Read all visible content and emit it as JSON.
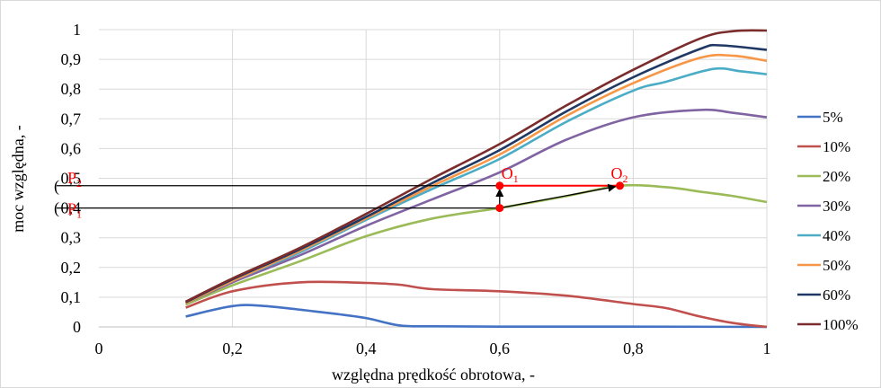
{
  "chart_data": {
    "type": "line",
    "title": "",
    "xlabel": "względna prędkość obrotowa, -",
    "ylabel": "moc względna, -",
    "xlim": [
      0,
      1
    ],
    "ylim": [
      0,
      1
    ],
    "x_ticks": [
      "0",
      "0,2",
      "0,4",
      "0,6",
      "0,8",
      "1"
    ],
    "y_ticks": [
      "0",
      "0,1",
      "0,2",
      "0,3",
      "0,4",
      "0,5",
      "0,6",
      "0,7",
      "0,8",
      "0,9",
      "1"
    ],
    "grid": true,
    "legend_position": "right",
    "series": [
      {
        "name": "5%",
        "color": "#4472c4",
        "points": [
          [
            0.13,
            0.035
          ],
          [
            0.2,
            0.07
          ],
          [
            0.25,
            0.07
          ],
          [
            0.35,
            0.045
          ],
          [
            0.4,
            0.03
          ],
          [
            0.45,
            0.005
          ],
          [
            0.5,
            0.002
          ],
          [
            0.6,
            0.001
          ],
          [
            0.8,
            0.001
          ],
          [
            1.0,
            0.0
          ]
        ]
      },
      {
        "name": "10%",
        "color": "#c0504d",
        "points": [
          [
            0.13,
            0.065
          ],
          [
            0.2,
            0.12
          ],
          [
            0.3,
            0.15
          ],
          [
            0.4,
            0.148
          ],
          [
            0.45,
            0.142
          ],
          [
            0.5,
            0.127
          ],
          [
            0.6,
            0.12
          ],
          [
            0.7,
            0.105
          ],
          [
            0.8,
            0.077
          ],
          [
            0.85,
            0.063
          ],
          [
            0.9,
            0.035
          ],
          [
            0.95,
            0.013
          ],
          [
            1.0,
            0.0
          ]
        ]
      },
      {
        "name": "20%",
        "color": "#9bbb59",
        "points": [
          [
            0.13,
            0.075
          ],
          [
            0.2,
            0.14
          ],
          [
            0.3,
            0.22
          ],
          [
            0.4,
            0.305
          ],
          [
            0.5,
            0.365
          ],
          [
            0.6,
            0.4
          ],
          [
            0.7,
            0.44
          ],
          [
            0.78,
            0.475
          ],
          [
            0.85,
            0.47
          ],
          [
            0.9,
            0.455
          ],
          [
            0.95,
            0.44
          ],
          [
            1.0,
            0.42
          ]
        ]
      },
      {
        "name": "30%",
        "color": "#8064a2",
        "points": [
          [
            0.13,
            0.08
          ],
          [
            0.2,
            0.15
          ],
          [
            0.3,
            0.24
          ],
          [
            0.4,
            0.34
          ],
          [
            0.5,
            0.43
          ],
          [
            0.6,
            0.52
          ],
          [
            0.7,
            0.63
          ],
          [
            0.8,
            0.705
          ],
          [
            0.9,
            0.73
          ],
          [
            0.95,
            0.72
          ],
          [
            1.0,
            0.705
          ]
        ]
      },
      {
        "name": "40%",
        "color": "#4bacc6",
        "points": [
          [
            0.13,
            0.08
          ],
          [
            0.2,
            0.155
          ],
          [
            0.3,
            0.25
          ],
          [
            0.4,
            0.36
          ],
          [
            0.5,
            0.465
          ],
          [
            0.6,
            0.565
          ],
          [
            0.7,
            0.69
          ],
          [
            0.8,
            0.795
          ],
          [
            0.85,
            0.825
          ],
          [
            0.92,
            0.868
          ],
          [
            0.96,
            0.86
          ],
          [
            1.0,
            0.85
          ]
        ]
      },
      {
        "name": "50%",
        "color": "#f79646",
        "points": [
          [
            0.13,
            0.08
          ],
          [
            0.2,
            0.155
          ],
          [
            0.3,
            0.255
          ],
          [
            0.4,
            0.365
          ],
          [
            0.5,
            0.475
          ],
          [
            0.6,
            0.58
          ],
          [
            0.7,
            0.71
          ],
          [
            0.8,
            0.82
          ],
          [
            0.9,
            0.905
          ],
          [
            0.95,
            0.912
          ],
          [
            1.0,
            0.895
          ]
        ]
      },
      {
        "name": "60%",
        "color": "#1f3864",
        "points": [
          [
            0.13,
            0.083
          ],
          [
            0.2,
            0.16
          ],
          [
            0.3,
            0.26
          ],
          [
            0.4,
            0.37
          ],
          [
            0.5,
            0.485
          ],
          [
            0.6,
            0.595
          ],
          [
            0.7,
            0.725
          ],
          [
            0.8,
            0.84
          ],
          [
            0.9,
            0.935
          ],
          [
            0.93,
            0.947
          ],
          [
            1.0,
            0.932
          ]
        ]
      },
      {
        "name": "100%",
        "color": "#7b2c2c",
        "points": [
          [
            0.13,
            0.085
          ],
          [
            0.2,
            0.163
          ],
          [
            0.3,
            0.265
          ],
          [
            0.4,
            0.38
          ],
          [
            0.5,
            0.5
          ],
          [
            0.6,
            0.615
          ],
          [
            0.7,
            0.745
          ],
          [
            0.8,
            0.865
          ],
          [
            0.9,
            0.97
          ],
          [
            0.95,
            0.995
          ],
          [
            1.0,
            0.997
          ]
        ]
      }
    ],
    "annotations": {
      "P1": {
        "label": "P",
        "sub": "1",
        "y": 0.4
      },
      "P2": {
        "label": "P",
        "sub": "2",
        "y": 0.475
      },
      "O1": {
        "label": "O",
        "sub": "1",
        "x": 0.6,
        "y": 0.475
      },
      "O2": {
        "label": "O",
        "sub": "2",
        "x": 0.78,
        "y": 0.475
      },
      "base_point": {
        "x": 0.6,
        "y": 0.4
      },
      "cut_tick_char": "("
    }
  }
}
